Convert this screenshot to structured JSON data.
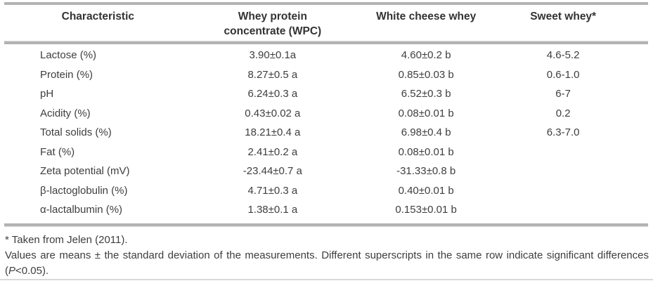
{
  "table": {
    "columns": [
      "Characteristic",
      "Whey protein concentrate (WPC)",
      "White cheese whey",
      "Sweet whey*"
    ],
    "rows": [
      {
        "characteristic": "Lactose (%)",
        "wpc": "3.90±0.1a",
        "white_cheese_whey": "4.60±0.2 b",
        "sweet_whey": "4.6-5.2"
      },
      {
        "characteristic": "Protein (%)",
        "wpc": "8.27±0.5 a",
        "white_cheese_whey": "0.85±0.03 b",
        "sweet_whey": "0.6-1.0"
      },
      {
        "characteristic": "pH",
        "wpc": "6.24±0.3 a",
        "white_cheese_whey": "6.52±0.3 b",
        "sweet_whey": "6-7"
      },
      {
        "characteristic": "Acidity (%)",
        "wpc": "0.43±0.02 a",
        "white_cheese_whey": "0.08±0.01 b",
        "sweet_whey": "0.2"
      },
      {
        "characteristic": "Total solids (%)",
        "wpc": "18.21±0.4 a",
        "white_cheese_whey": "6.98±0.4 b",
        "sweet_whey": "6.3-7.0"
      },
      {
        "characteristic": "Fat (%)",
        "wpc": "2.41±0.2 a",
        "white_cheese_whey": "0.08±0.01 b",
        "sweet_whey": ""
      },
      {
        "characteristic": "Zeta potential (mV)",
        "wpc": "-23.44±0.7 a",
        "white_cheese_whey": "-31.33±0.8 b",
        "sweet_whey": ""
      },
      {
        "characteristic": "β-lactoglobulin (%)",
        "wpc": "4.71±0.3 a",
        "white_cheese_whey": "0.40±0.01 b",
        "sweet_whey": ""
      },
      {
        "characteristic": "α-lactalbumin (%)",
        "wpc": "1.38±0.1 a",
        "white_cheese_whey": "0.153±0.01 b",
        "sweet_whey": ""
      }
    ]
  },
  "footer": {
    "asterisk_note": "* Taken from Jelen (2011).",
    "values_note": "Values are means ± the standard deviation of the measurements. Different superscripts in the same row indicate significant differences",
    "p_open": "(",
    "p_symbol": "P",
    "p_rest": "<0.05)."
  },
  "colors": {
    "rule_gray": "#b3b3b3",
    "rule_light_gray": "#dedede",
    "text": "#3e3e3e"
  }
}
